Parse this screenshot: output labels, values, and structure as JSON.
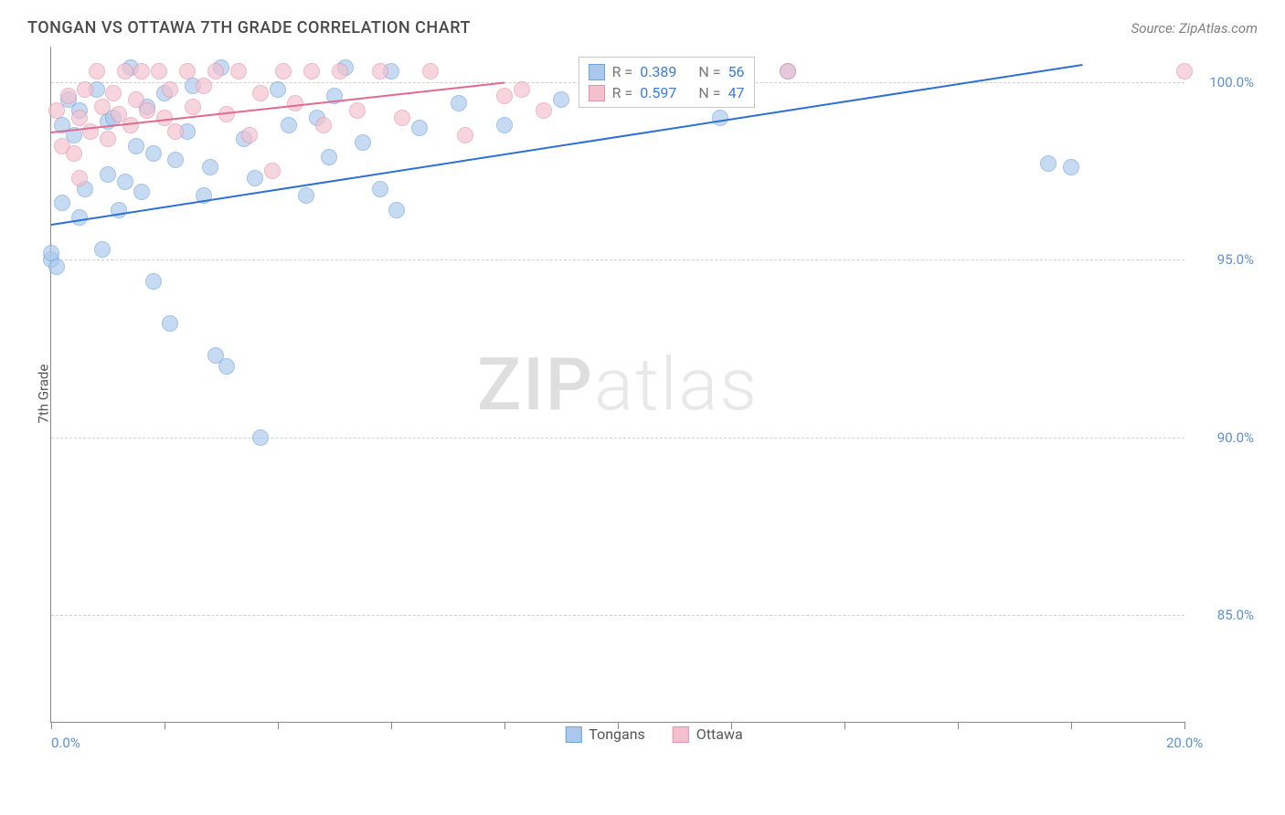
{
  "header": {
    "title": "TONGAN VS OTTAWA 7TH GRADE CORRELATION CHART",
    "source": "Source: ZipAtlas.com"
  },
  "ylabel": "7th Grade",
  "watermark": {
    "bold": "ZIP",
    "light": "atlas"
  },
  "chart": {
    "type": "scatter",
    "background_color": "#ffffff",
    "grid_color": "#d0d0d0",
    "axis_color": "#888888",
    "xlim": [
      0,
      20
    ],
    "ylim": [
      82,
      101
    ],
    "xticks": [
      0,
      2,
      4,
      6,
      8,
      10,
      12,
      14,
      16,
      18,
      20
    ],
    "xtick_labels": {
      "0": "0.0%",
      "20": "20.0%"
    },
    "yticks": [
      85,
      90,
      95,
      100
    ],
    "ytick_labels": {
      "85": "85.0%",
      "90": "90.0%",
      "95": "95.0%",
      "100": "100.0%"
    },
    "label_fontsize": 15,
    "label_color": "#5b8fd6"
  },
  "series": [
    {
      "name": "Tongans",
      "marker_color": "#a9c8ec",
      "marker_border": "#6fa3de",
      "marker_opacity": 0.65,
      "marker_radius": 9,
      "trend_color": "#2e6fd2",
      "trend": {
        "x0": 0,
        "y0": 96.0,
        "x1": 18.2,
        "y1": 100.5
      },
      "legend": {
        "R": "0.389",
        "N": "56"
      },
      "points": [
        [
          0.0,
          95.0
        ],
        [
          0.0,
          95.2
        ],
        [
          0.1,
          94.8
        ],
        [
          0.2,
          96.6
        ],
        [
          0.2,
          98.8
        ],
        [
          0.3,
          99.5
        ],
        [
          0.4,
          98.5
        ],
        [
          0.5,
          99.2
        ],
        [
          0.5,
          96.2
        ],
        [
          0.6,
          97.0
        ],
        [
          0.8,
          99.8
        ],
        [
          0.9,
          95.3
        ],
        [
          1.0,
          97.4
        ],
        [
          1.0,
          98.9
        ],
        [
          1.1,
          99.0
        ],
        [
          1.2,
          96.4
        ],
        [
          1.3,
          97.2
        ],
        [
          1.4,
          100.4
        ],
        [
          1.5,
          98.2
        ],
        [
          1.6,
          96.9
        ],
        [
          1.7,
          99.3
        ],
        [
          1.8,
          98.0
        ],
        [
          1.8,
          94.4
        ],
        [
          2.0,
          99.7
        ],
        [
          2.1,
          93.2
        ],
        [
          2.2,
          97.8
        ],
        [
          2.4,
          98.6
        ],
        [
          2.5,
          99.9
        ],
        [
          2.7,
          96.8
        ],
        [
          2.8,
          97.6
        ],
        [
          2.9,
          92.3
        ],
        [
          3.0,
          100.4
        ],
        [
          3.1,
          92.0
        ],
        [
          3.4,
          98.4
        ],
        [
          3.6,
          97.3
        ],
        [
          3.7,
          90.0
        ],
        [
          4.0,
          99.8
        ],
        [
          4.2,
          98.8
        ],
        [
          4.5,
          96.8
        ],
        [
          4.7,
          99.0
        ],
        [
          4.9,
          97.9
        ],
        [
          5.0,
          99.6
        ],
        [
          5.2,
          100.4
        ],
        [
          5.5,
          98.3
        ],
        [
          5.8,
          97.0
        ],
        [
          6.0,
          100.3
        ],
        [
          6.1,
          96.4
        ],
        [
          6.5,
          98.7
        ],
        [
          7.2,
          99.4
        ],
        [
          8.0,
          98.8
        ],
        [
          9.0,
          99.5
        ],
        [
          10.5,
          100.3
        ],
        [
          11.8,
          99.0
        ],
        [
          13.0,
          100.3
        ],
        [
          17.6,
          97.7
        ],
        [
          18.0,
          97.6
        ]
      ]
    },
    {
      "name": "Ottawa",
      "marker_color": "#f4c0cf",
      "marker_border": "#e493ab",
      "marker_opacity": 0.65,
      "marker_radius": 9,
      "trend_color": "#e06a8e",
      "trend": {
        "x0": 0,
        "y0": 98.6,
        "x1": 8.0,
        "y1": 100.0
      },
      "legend": {
        "R": "0.597",
        "N": "47"
      },
      "points": [
        [
          0.1,
          99.2
        ],
        [
          0.2,
          98.2
        ],
        [
          0.3,
          99.6
        ],
        [
          0.4,
          98.0
        ],
        [
          0.5,
          99.0
        ],
        [
          0.5,
          97.3
        ],
        [
          0.6,
          99.8
        ],
        [
          0.7,
          98.6
        ],
        [
          0.8,
          100.3
        ],
        [
          0.9,
          99.3
        ],
        [
          1.0,
          98.4
        ],
        [
          1.1,
          99.7
        ],
        [
          1.2,
          99.1
        ],
        [
          1.3,
          100.3
        ],
        [
          1.4,
          98.8
        ],
        [
          1.5,
          99.5
        ],
        [
          1.6,
          100.3
        ],
        [
          1.7,
          99.2
        ],
        [
          1.9,
          100.3
        ],
        [
          2.0,
          99.0
        ],
        [
          2.1,
          99.8
        ],
        [
          2.2,
          98.6
        ],
        [
          2.4,
          100.3
        ],
        [
          2.5,
          99.3
        ],
        [
          2.7,
          99.9
        ],
        [
          2.9,
          100.3
        ],
        [
          3.1,
          99.1
        ],
        [
          3.3,
          100.3
        ],
        [
          3.5,
          98.5
        ],
        [
          3.7,
          99.7
        ],
        [
          3.9,
          97.5
        ],
        [
          4.1,
          100.3
        ],
        [
          4.3,
          99.4
        ],
        [
          4.6,
          100.3
        ],
        [
          4.8,
          98.8
        ],
        [
          5.1,
          100.3
        ],
        [
          5.4,
          99.2
        ],
        [
          5.8,
          100.3
        ],
        [
          6.2,
          99.0
        ],
        [
          6.7,
          100.3
        ],
        [
          7.3,
          98.5
        ],
        [
          8.0,
          99.6
        ],
        [
          8.3,
          99.8
        ],
        [
          8.7,
          99.2
        ],
        [
          10.5,
          100.3
        ],
        [
          13.0,
          100.3
        ],
        [
          20.0,
          100.3
        ]
      ]
    }
  ],
  "stats_box": {
    "left_pct": 46.5,
    "top_pct": 1.5
  },
  "bottom_legend": [
    {
      "label": "Tongans",
      "fill": "#a9c8ec",
      "border": "#6fa3de"
    },
    {
      "label": "Ottawa",
      "fill": "#f4c0cf",
      "border": "#e493ab"
    }
  ]
}
